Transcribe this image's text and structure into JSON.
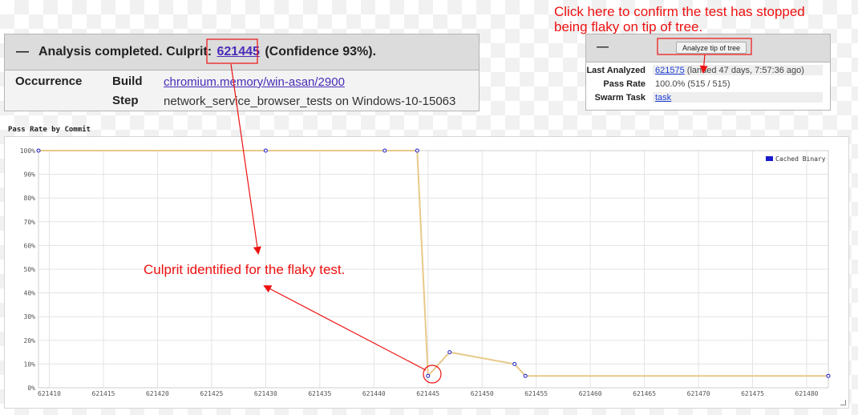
{
  "analysis": {
    "toggle": "—",
    "heading_prefix": "Analysis completed. Culprit:",
    "culprit_commit": "621445",
    "confidence": "(Confidence 93%).",
    "occurrence_label": "Occurrence",
    "build_label": "Build",
    "build_value": "chromium.memory/win-asan/2900",
    "step_label": "Step",
    "step_value": "network_service_browser_tests on Windows-10-15063"
  },
  "tip": {
    "toggle": "—",
    "button_label": "Analyze tip of tree",
    "last_analyzed_label": "Last Analyzed",
    "last_analyzed_commit": "621575",
    "last_analyzed_note": "(landed 47 days, 7:57:36 ago)",
    "pass_rate_label": "Pass Rate",
    "pass_rate_value": "100.0% (515 / 515)",
    "swarm_task_label": "Swarm Task",
    "swarm_task_link": "task"
  },
  "annotations": {
    "tip_callout_line1": "Click here to confirm the test has stopped",
    "tip_callout_line2": "being flaky on tip of tree.",
    "culprit_callout": "Culprit identified for the flaky test.",
    "color": "#ee1111"
  },
  "chart_title": "Pass Rate by Commit",
  "chart_data": {
    "type": "line",
    "xlim": [
      621409,
      621482
    ],
    "ylim": [
      0,
      100
    ],
    "x_ticks": [
      "621410",
      "621415",
      "621420",
      "621425",
      "621430",
      "621435",
      "621440",
      "621445",
      "621450",
      "621455",
      "621460",
      "621465",
      "621470",
      "621475",
      "621480"
    ],
    "y_ticks": [
      "0%",
      "10%",
      "20%",
      "30%",
      "40%",
      "50%",
      "60%",
      "70%",
      "80%",
      "90%",
      "100%"
    ],
    "grid": true,
    "legend_position": "top-right",
    "series": [
      {
        "name": "Cached Binary",
        "line_color": "#e8c98a",
        "marker_color": "#1a1acc",
        "x": [
          621409,
          621430,
          621441,
          621444,
          621445,
          621447,
          621453,
          621454,
          621482
        ],
        "y": [
          100,
          100,
          100,
          100,
          5,
          15,
          10,
          5,
          5
        ]
      }
    ]
  }
}
